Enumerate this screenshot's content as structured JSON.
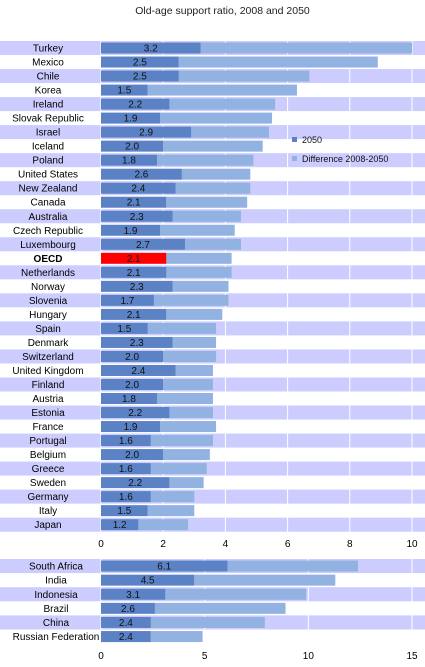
{
  "chart_data": [
    {
      "type": "bar",
      "title": "Old-age support ratio, 2008 and 2050",
      "orientation": "horizontal",
      "stacked": true,
      "xlim": [
        0,
        10
      ],
      "xticks": [
        0,
        2,
        4,
        6,
        8,
        10
      ],
      "categories": [
        "Turkey",
        "Mexico",
        "Chile",
        "Korea",
        "Ireland",
        "Slovak Republic",
        "Israel",
        "Iceland",
        "Poland",
        "United States",
        "New Zealand",
        "Canada",
        "Australia",
        "Czech Republic",
        "Luxembourg",
        "OECD",
        "Netherlands",
        "Norway",
        "Slovenia",
        "Hungary",
        "Spain",
        "Denmark",
        "Switzerland",
        "United Kingdom",
        "Finland",
        "Austria",
        "Estonia",
        "France",
        "Portugal",
        "Belgium",
        "Greece",
        "Sweden",
        "Germany",
        "Italy",
        "Japan"
      ],
      "highlight_category": "OECD",
      "series": [
        {
          "name": "2050",
          "color": "#5a82c4",
          "values": [
            3.2,
            2.5,
            2.5,
            1.5,
            2.2,
            1.9,
            2.9,
            2.0,
            1.8,
            2.6,
            2.4,
            2.1,
            2.3,
            1.9,
            2.7,
            2.1,
            2.1,
            2.3,
            1.7,
            2.1,
            1.5,
            2.3,
            2.0,
            2.4,
            2.0,
            1.8,
            2.2,
            1.9,
            1.6,
            2.0,
            1.6,
            2.2,
            1.6,
            1.5,
            1.2
          ]
        },
        {
          "name": "Difference 2008-2050",
          "color": "#92b2e2",
          "values": [
            6.8,
            6.4,
            4.2,
            4.8,
            3.4,
            3.6,
            2.5,
            3.2,
            3.1,
            2.2,
            2.4,
            2.6,
            2.2,
            2.4,
            1.8,
            2.1,
            2.1,
            1.8,
            2.4,
            1.8,
            2.2,
            1.4,
            1.7,
            1.2,
            1.6,
            1.8,
            1.4,
            1.8,
            2.0,
            1.5,
            1.8,
            1.1,
            1.4,
            1.5,
            1.6
          ]
        }
      ],
      "data_labels": [
        "3.2",
        "2.5",
        "2.5",
        "1.5",
        "2.2",
        "1.9",
        "2.9",
        "2.0",
        "1.8",
        "2.6",
        "2.4",
        "2.1",
        "2.3",
        "1.9",
        "2.7",
        "2.1",
        "2.1",
        "2.3",
        "1.7",
        "2.1",
        "1.5",
        "2.3",
        "2.0",
        "2.4",
        "2.0",
        "1.8",
        "2.2",
        "1.9",
        "1.6",
        "2.0",
        "1.6",
        "2.2",
        "1.6",
        "1.5",
        "1.2"
      ],
      "legend": "right",
      "highlight_color": "#ff0000",
      "band_color": "#ccccff"
    },
    {
      "type": "bar",
      "orientation": "horizontal",
      "stacked": true,
      "xlim": [
        0,
        15
      ],
      "xticks": [
        0,
        5,
        10,
        15
      ],
      "categories": [
        "South Africa",
        "India",
        "Indonesia",
        "Brazil",
        "China",
        "Russian Federation"
      ],
      "series": [
        {
          "name": "2050",
          "color": "#5a82c4",
          "values": [
            6.1,
            4.5,
            3.1,
            2.6,
            2.4,
            2.4
          ]
        },
        {
          "name": "Difference 2008-2050",
          "color": "#92b2e2",
          "values": [
            6.3,
            6.8,
            6.8,
            6.3,
            5.5,
            2.5
          ]
        }
      ],
      "data_labels": [
        "6.1",
        "4.5",
        "3.1",
        "2.6",
        "2.4",
        "2.4"
      ],
      "band_color": "#ccccff"
    }
  ],
  "title_text": "Old-age support ratio, 2008 and 2050",
  "legend": {
    "items": [
      {
        "label": "2050",
        "color": "#5a82c4"
      },
      {
        "label": "Difference 2008-2050",
        "color": "#92b2e2"
      }
    ]
  }
}
